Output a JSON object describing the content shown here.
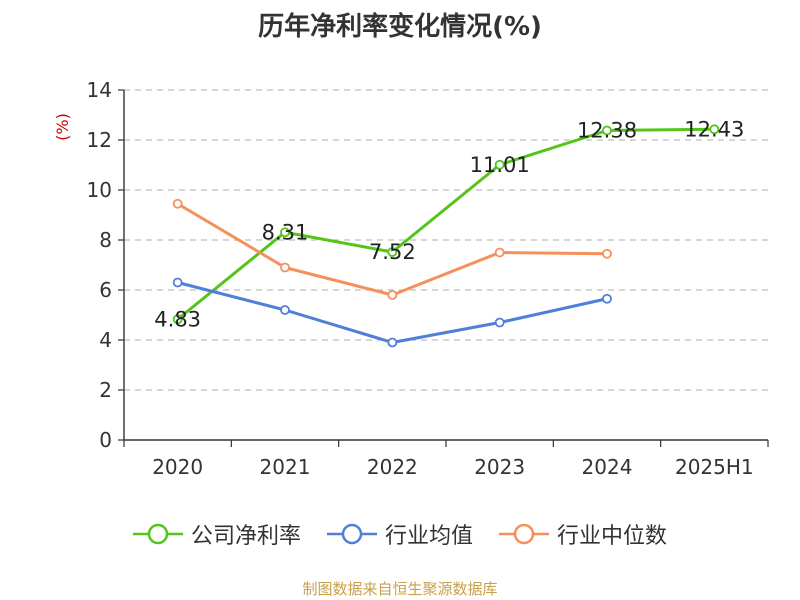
{
  "chart_data": {
    "type": "line",
    "title": "历年净利率变化情况(%)",
    "ylabel": "(%)",
    "xlabel": "",
    "categories": [
      "2020",
      "2021",
      "2022",
      "2023",
      "2024",
      "2025H1"
    ],
    "ylim": [
      0,
      14
    ],
    "yticks": [
      0,
      2,
      4,
      6,
      8,
      10,
      12,
      14
    ],
    "grid": true,
    "legend_position": "bottom",
    "series": [
      {
        "name": "公司净利率",
        "color": "#52c41a",
        "values": [
          4.83,
          8.31,
          7.52,
          11.01,
          12.38,
          12.43
        ],
        "labels": [
          "4.83",
          "8.31",
          "7.52",
          "11.01",
          "12.38",
          "12.43"
        ]
      },
      {
        "name": "行业均值",
        "color": "#4f7fd9",
        "values": [
          6.3,
          5.2,
          3.9,
          4.7,
          5.65,
          null
        ]
      },
      {
        "name": "行业中位数",
        "color": "#f5905a",
        "values": [
          9.45,
          6.9,
          5.8,
          7.5,
          7.45,
          null
        ]
      }
    ]
  },
  "source_text": "制图数据来自恒生聚源数据库"
}
